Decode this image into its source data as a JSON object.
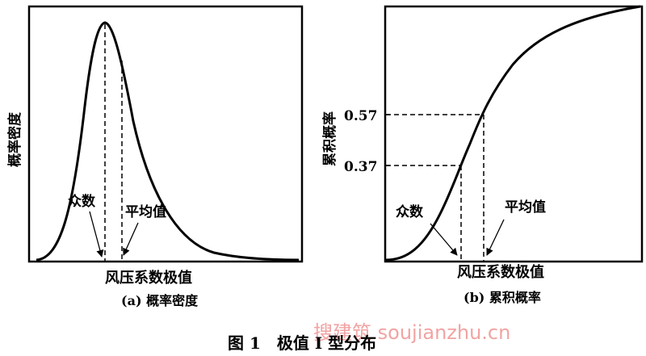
{
  "chart_data": [
    {
      "type": "line",
      "id": "a",
      "ylabel": "概率密度",
      "xlabel": "风压系数极值",
      "caption": "(a) 概率密度",
      "annotations": [
        "众数",
        "平均值"
      ]
    },
    {
      "type": "line",
      "id": "b",
      "ylabel": "累积概率",
      "xlabel": "风压系数极值",
      "caption": "(b) 累积概率",
      "yticks": [
        "0.57",
        "0.37"
      ],
      "ytick_values": [
        0.57,
        0.37
      ],
      "annotations": [
        "众数",
        "平均值"
      ]
    }
  ],
  "figure_title": "图 1　极值 Ⅰ 型分布",
  "watermark": "搜建筑 soujianzhu.cn"
}
